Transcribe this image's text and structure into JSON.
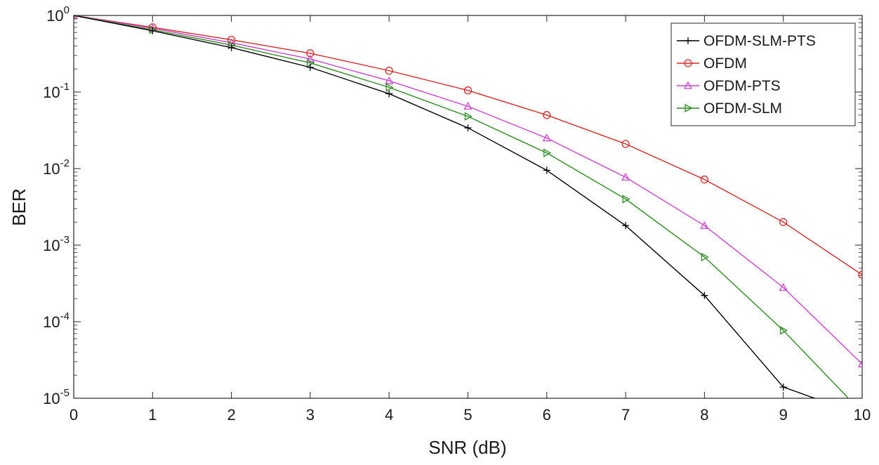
{
  "chart_data": {
    "type": "line",
    "title": "",
    "xlabel": "SNR (dB)",
    "ylabel": "BER",
    "xlim": [
      0,
      10
    ],
    "ylim": [
      1e-05,
      1
    ],
    "yscale": "log",
    "grid": false,
    "legend_position": "top-right",
    "x": [
      0,
      1,
      2,
      3,
      4,
      5,
      6,
      7,
      8,
      9,
      10
    ],
    "x_ticks": [
      "0",
      "1",
      "2",
      "3",
      "4",
      "5",
      "6",
      "7",
      "8",
      "9",
      "10"
    ],
    "y_ticks": [
      {
        "base": "10",
        "exp": "0"
      },
      {
        "base": "10",
        "exp": "-1"
      },
      {
        "base": "10",
        "exp": "-2"
      },
      {
        "base": "10",
        "exp": "-3"
      },
      {
        "base": "10",
        "exp": "-4"
      },
      {
        "base": "10",
        "exp": "-5"
      }
    ],
    "series": [
      {
        "name": "OFDM-SLM-PTS",
        "color": "#000000",
        "marker": "plus",
        "values": [
          1.0,
          0.63,
          0.38,
          0.21,
          0.095,
          0.034,
          0.0095,
          0.0018,
          0.00022,
          1.4e-05,
          6e-06
        ]
      },
      {
        "name": "OFDM",
        "color": "#d62728",
        "marker": "circle",
        "values": [
          1.0,
          0.7,
          0.48,
          0.32,
          0.19,
          0.105,
          0.05,
          0.021,
          0.0072,
          0.002,
          0.00041
        ]
      },
      {
        "name": "OFDM-PTS",
        "color": "#cc44cc",
        "marker": "triangle-up",
        "values": [
          1.0,
          0.68,
          0.44,
          0.27,
          0.14,
          0.065,
          0.025,
          0.0077,
          0.0018,
          0.00028,
          2.8e-05
        ]
      },
      {
        "name": "OFDM-SLM",
        "color": "#2e8b22",
        "marker": "triangle-right",
        "values": [
          1.0,
          0.65,
          0.41,
          0.24,
          0.115,
          0.048,
          0.016,
          0.004,
          0.0007,
          7.7e-05,
          6.5e-06
        ]
      }
    ]
  }
}
